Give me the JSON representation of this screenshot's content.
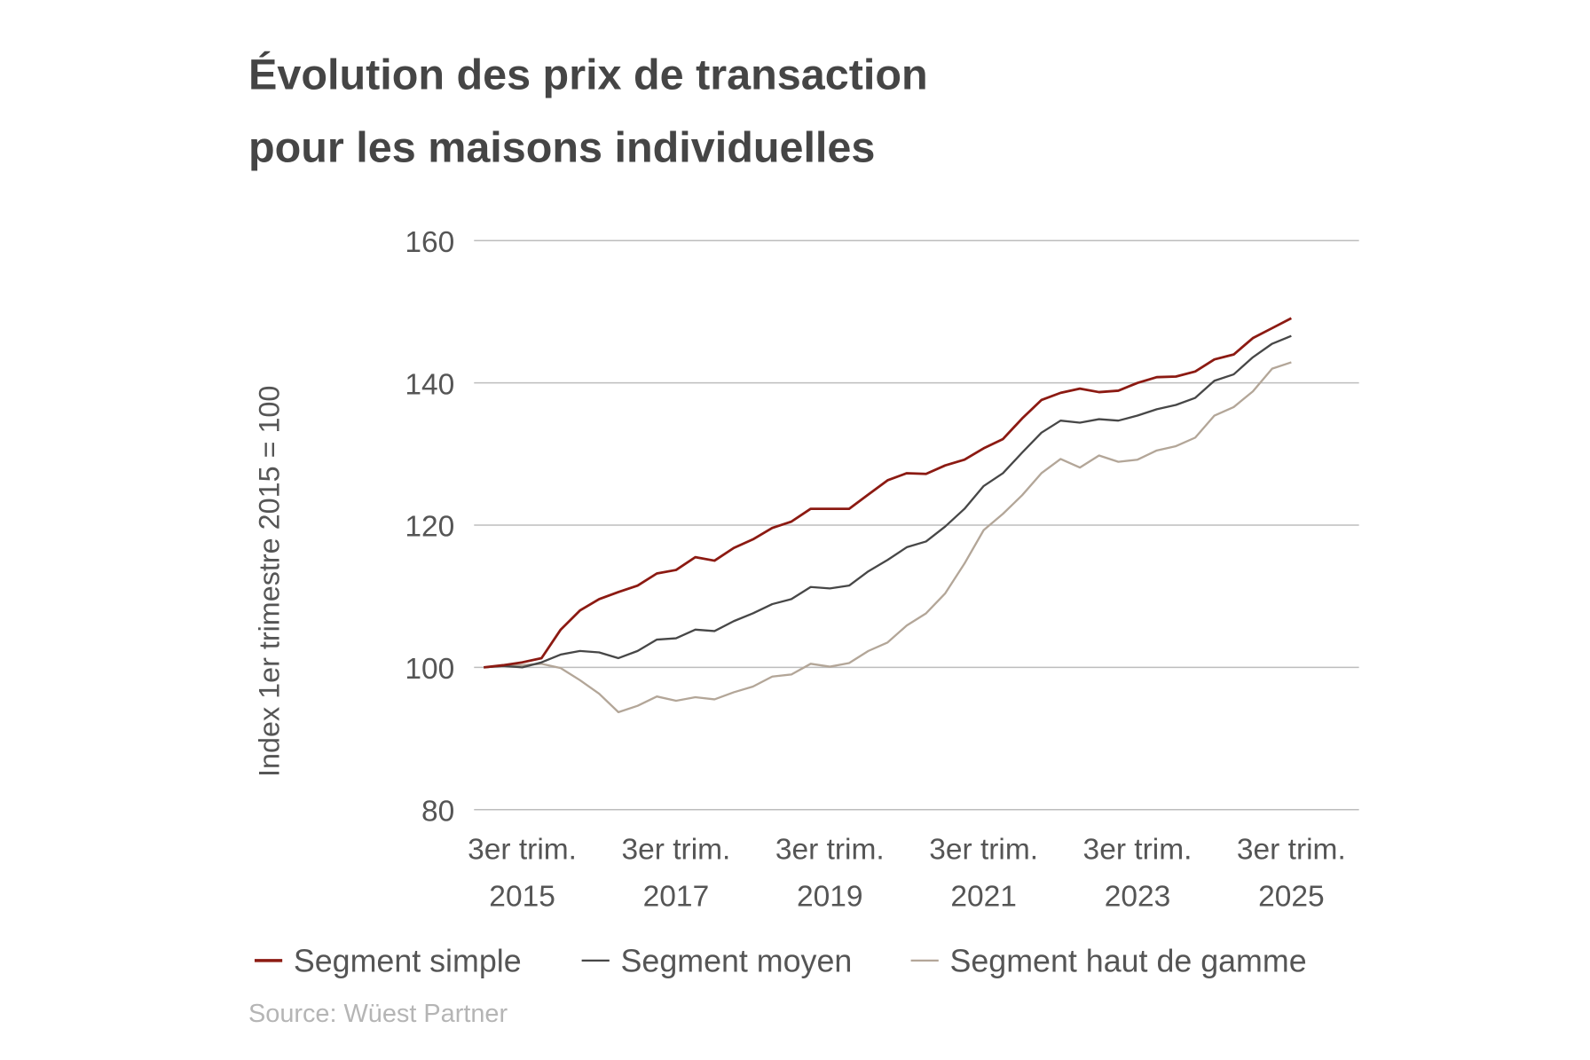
{
  "chart_data": {
    "type": "line",
    "title": [
      "Évolution des prix de transaction",
      "pour les maisons individuelles"
    ],
    "ylabel": "Index 1er trimestre 2015 = 100",
    "xlabel": "",
    "ylim": [
      80,
      160
    ],
    "yticks": [
      80,
      100,
      120,
      140,
      160
    ],
    "grid": true,
    "x_start": "1er trim. 2015",
    "x_end": "3er trim. 2025",
    "x_frequency": "quarterly",
    "xtick_labels": [
      {
        "quarter_index": 2,
        "line1": "3er trim.",
        "line2": "2015"
      },
      {
        "quarter_index": 10,
        "line1": "3er trim.",
        "line2": "2017"
      },
      {
        "quarter_index": 18,
        "line1": "3er trim.",
        "line2": "2019"
      },
      {
        "quarter_index": 26,
        "line1": "3er trim.",
        "line2": "2021"
      },
      {
        "quarter_index": 34,
        "line1": "3er trim.",
        "line2": "2023"
      },
      {
        "quarter_index": 42,
        "line1": "3er trim.",
        "line2": "2025"
      }
    ],
    "legend_position": "bottom",
    "series": [
      {
        "name": "Segment simple",
        "color": "#8c1a12",
        "values": [
          100,
          100.3,
          100.7,
          101.3,
          105.3,
          108,
          109.6,
          110.6,
          111.5,
          113.2,
          113.7,
          115.5,
          115,
          116.8,
          118,
          119.6,
          120.5,
          122.3,
          122.3,
          122.3,
          124.3,
          126.3,
          127.3,
          127.2,
          128.4,
          129.2,
          130.8,
          132.1,
          135,
          137.6,
          138.6,
          139.2,
          138.7,
          138.9,
          140,
          140.8,
          140.9,
          141.6,
          143.3,
          144,
          146.3,
          147.7,
          149.1
        ]
      },
      {
        "name": "Segment moyen",
        "color": "#474747",
        "values": [
          100,
          100.2,
          100,
          100.7,
          101.8,
          102.3,
          102.1,
          101.3,
          102.3,
          103.9,
          104.1,
          105.3,
          105.1,
          106.5,
          107.6,
          108.9,
          109.6,
          111.3,
          111.1,
          111.5,
          113.5,
          115.1,
          116.9,
          117.7,
          119.8,
          122.3,
          125.5,
          127.3,
          130.2,
          133,
          134.7,
          134.4,
          134.9,
          134.7,
          135.4,
          136.3,
          136.9,
          137.9,
          140.3,
          141.2,
          143.6,
          145.5,
          146.6
        ]
      },
      {
        "name": "Segment haut de gamme",
        "color": "#b3a698",
        "values": [
          100,
          100.2,
          100.3,
          100.5,
          99.9,
          98.2,
          96.3,
          93.7,
          94.6,
          95.9,
          95.3,
          95.8,
          95.5,
          96.5,
          97.3,
          98.7,
          99,
          100.5,
          100.1,
          100.6,
          102.3,
          103.5,
          105.9,
          107.6,
          110.4,
          114.6,
          119.3,
          121.6,
          124.2,
          127.3,
          129.3,
          128.1,
          129.8,
          128.9,
          129.2,
          130.5,
          131.1,
          132.3,
          135.4,
          136.6,
          138.8,
          142,
          142.9
        ]
      }
    ],
    "source": "Source: Wüest Partner"
  },
  "colors": {
    "gridline": "#bdbdbd",
    "text": "#555555"
  }
}
